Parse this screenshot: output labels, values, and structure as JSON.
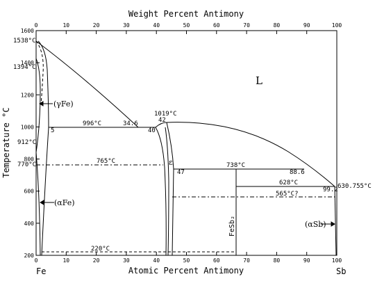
{
  "title_top": "Weight Percent Antimony",
  "title_bottom": "Atomic Percent Antimony",
  "ylabel": "Temperature °C",
  "x_ticks_atomic": [
    "0",
    "10",
    "20",
    "30",
    "40",
    "50",
    "60",
    "70",
    "80",
    "90",
    "100"
  ],
  "x_ticks_weight": [
    "0",
    "10",
    "20",
    "30",
    "40",
    "50",
    "60",
    "70",
    "80",
    "90",
    "100"
  ],
  "y_ticks": [
    "200",
    "400",
    "600",
    "800",
    "1000",
    "1200",
    "1400",
    "1600"
  ],
  "elements": {
    "left": "Fe",
    "right": "Sb"
  },
  "labels": {
    "fe_melt": "1538°C",
    "fe_gamma_delta": "1394°C",
    "fe_alpha_gamma": "912°C",
    "magnetic_temp": "770°C",
    "sb_melt": "630.755°C",
    "liquid": "L",
    "gamma_fe": "(γFe)",
    "alpha_fe": "(αFe)",
    "alpha_sb": "(αSb)",
    "epsilon": "ε",
    "compound": "FeSb₂",
    "eutectic_996": "996°C",
    "comp_34_6": "34.6",
    "comp_40": "40",
    "comp_5": "5",
    "max_1019": "1019°C",
    "comp_42": "42",
    "temp_765": "765°C",
    "temp_738": "738°C",
    "comp_47": "47",
    "comp_88_6": "88.6",
    "temp_628": "628°C",
    "comp_99_2": "99.2",
    "temp_565": "565°C?",
    "temp_220": "220°C"
  }
}
